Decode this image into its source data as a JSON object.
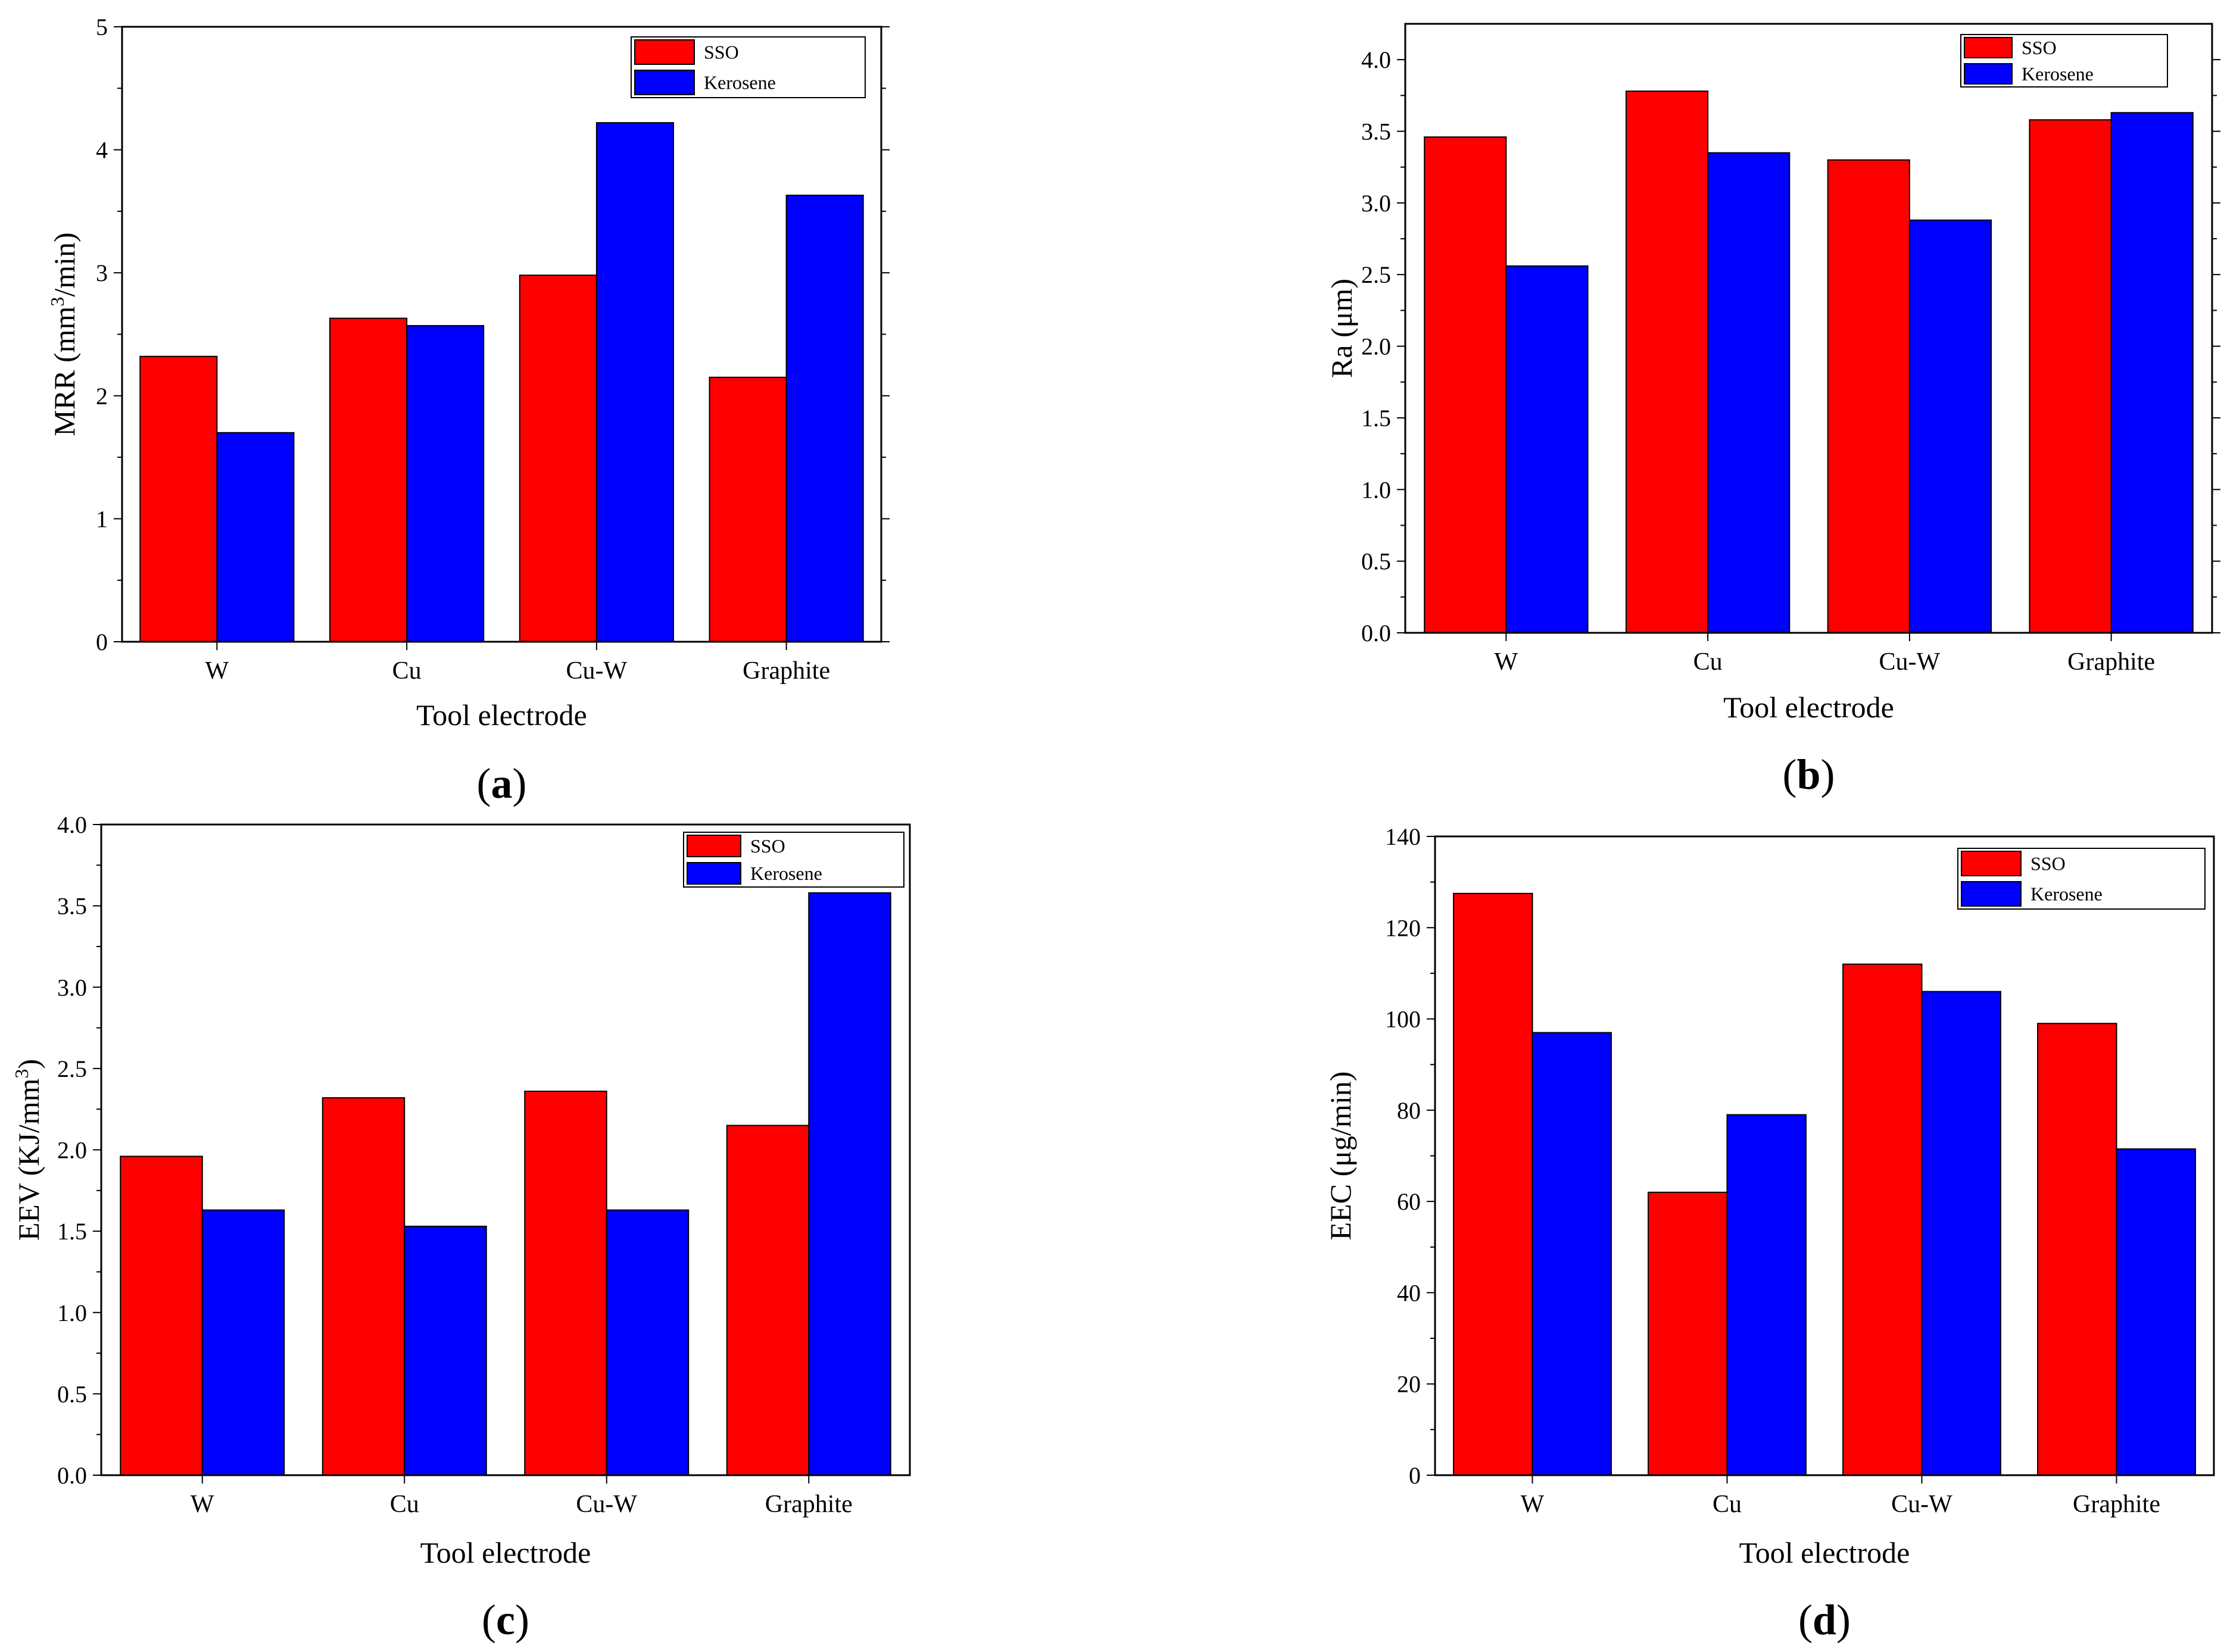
{
  "figure": {
    "colors": {
      "SSO": "#ff0000",
      "Kerosene": "#0000ff",
      "axis": "#000000",
      "background": "#ffffff"
    }
  },
  "chart_data": [
    {
      "type": "bar",
      "panel": "a",
      "panel_label": [
        "(",
        "a",
        ")"
      ],
      "categories": [
        "W",
        "Cu",
        "Cu-W",
        "Graphite"
      ],
      "series": [
        {
          "name": "SSO",
          "values": [
            2.32,
            2.63,
            2.98,
            2.15
          ]
        },
        {
          "name": "Kerosene",
          "values": [
            1.7,
            2.57,
            4.22,
            3.63
          ]
        }
      ],
      "title": "",
      "xlabel": "Tool electrode",
      "ylabel": "MRR (mm³/min)",
      "ylabel_parts": [
        "MRR (mm",
        "3",
        "/min)"
      ],
      "ylim": [
        0,
        5
      ],
      "yticks": [
        "0",
        "1",
        "2",
        "3",
        "4",
        "5"
      ],
      "legend_position": "top-right"
    },
    {
      "type": "bar",
      "panel": "b",
      "panel_label": [
        "(",
        "b",
        ")"
      ],
      "categories": [
        "W",
        "Cu",
        "Cu-W",
        "Graphite"
      ],
      "series": [
        {
          "name": "SSO",
          "values": [
            3.46,
            3.78,
            3.3,
            3.58
          ]
        },
        {
          "name": "Kerosene",
          "values": [
            2.56,
            3.35,
            2.88,
            3.63
          ]
        }
      ],
      "title": "",
      "xlabel": "Tool electrode",
      "ylabel": "Ra (μm)",
      "ylabel_parts": [
        "Ra (μm)"
      ],
      "ylim": [
        0,
        4.25
      ],
      "yticks": [
        "0.0",
        "0.5",
        "1.0",
        "1.5",
        "2.0",
        "2.5",
        "3.0",
        "3.5",
        "4.0"
      ],
      "legend_position": "top-right"
    },
    {
      "type": "bar",
      "panel": "c",
      "panel_label": [
        "(",
        "c",
        ")"
      ],
      "categories": [
        "W",
        "Cu",
        "Cu-W",
        "Graphite"
      ],
      "series": [
        {
          "name": "SSO",
          "values": [
            1.96,
            2.32,
            2.36,
            2.15
          ]
        },
        {
          "name": "Kerosene",
          "values": [
            1.63,
            1.53,
            1.63,
            3.58
          ]
        }
      ],
      "title": "",
      "xlabel": "Tool electrode",
      "ylabel": "EEV (KJ/mm³)",
      "ylabel_parts": [
        "EEV (KJ/mm",
        "3",
        ")"
      ],
      "ylim": [
        0,
        4.0
      ],
      "yticks": [
        "0.0",
        "0.5",
        "1.0",
        "1.5",
        "2.0",
        "2.5",
        "3.0",
        "3.5",
        "4.0"
      ],
      "legend_position": "top-right"
    },
    {
      "type": "bar",
      "panel": "d",
      "panel_label": [
        "(",
        "d",
        ")"
      ],
      "categories": [
        "W",
        "Cu",
        "Cu-W",
        "Graphite"
      ],
      "series": [
        {
          "name": "SSO",
          "values": [
            127.5,
            62.0,
            112.0,
            99.0
          ]
        },
        {
          "name": "Kerosene",
          "values": [
            97.0,
            79.0,
            106.0,
            71.5
          ]
        }
      ],
      "title": "",
      "xlabel": "Tool electrode",
      "ylabel": "EEC (μg/min)",
      "ylabel_parts": [
        "EEC (μg/min)"
      ],
      "ylim": [
        0,
        140
      ],
      "yticks": [
        "0",
        "20",
        "40",
        "60",
        "80",
        "100",
        "120",
        "140"
      ],
      "legend_position": "top-right"
    }
  ]
}
